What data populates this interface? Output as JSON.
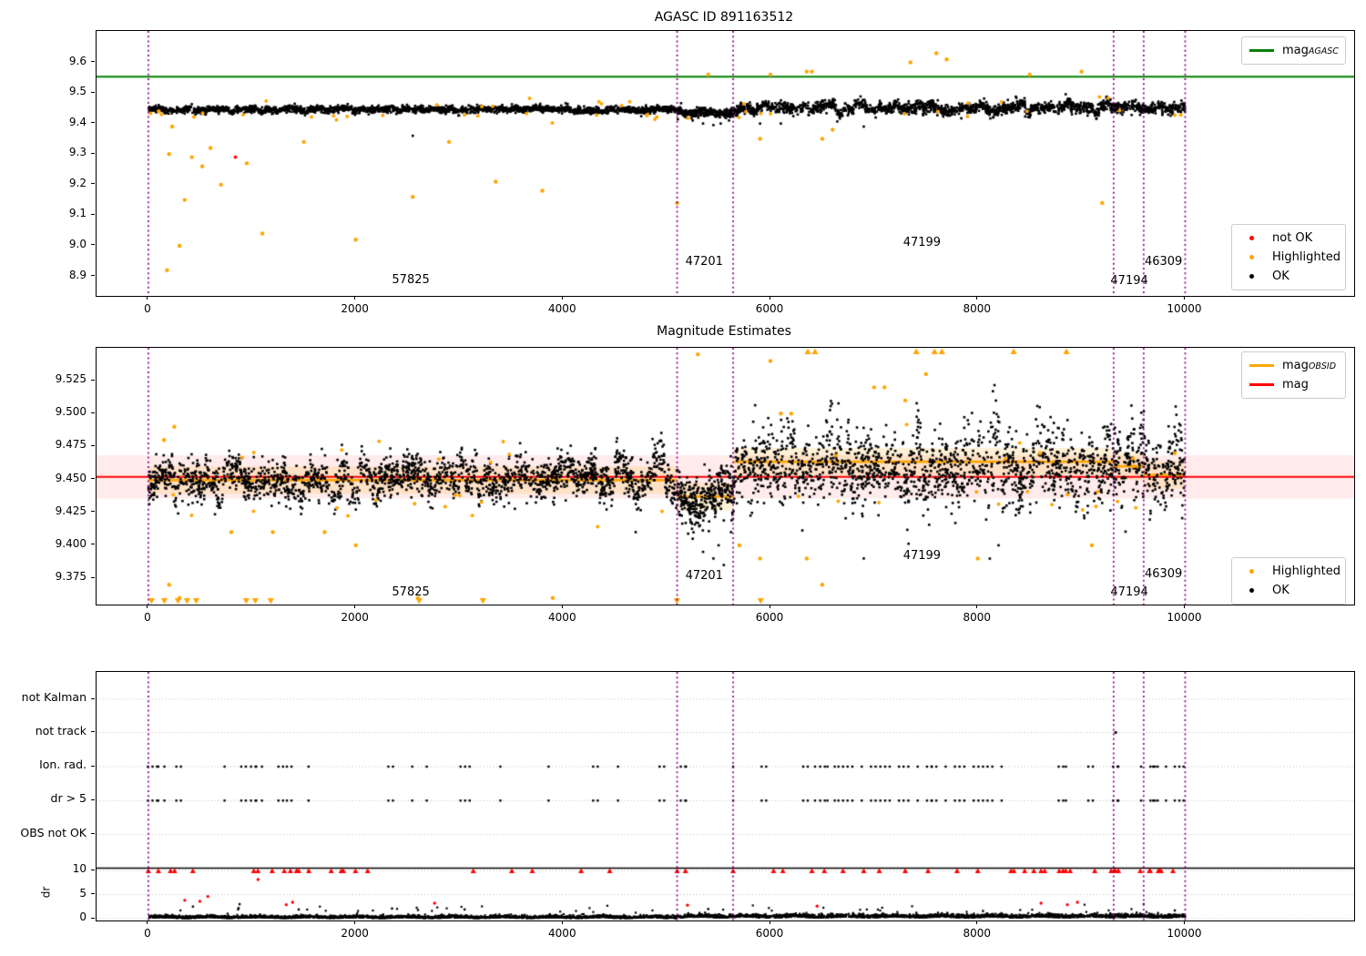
{
  "colors": {
    "green": "#008000",
    "orange": "#ffa500",
    "red": "#ff0000",
    "black": "#000000",
    "purple": "#880088",
    "grid": "#b9b9b9",
    "band_pink": "rgba(255,0,0,0.08)",
    "band_cream": "rgba(255,165,0,0.16)",
    "legend_border": "#cccccc"
  },
  "chart_data": [
    {
      "type": "scatter",
      "title": "AGASC ID 891163512",
      "xlim": [
        -500,
        11630
      ],
      "ylim": [
        8.836,
        9.703
      ],
      "xticks": [
        0,
        2000,
        4000,
        6000,
        8000,
        10000
      ],
      "xtick_labels": [
        "0",
        "2000",
        "4000",
        "6000",
        "8000",
        "10000"
      ],
      "yticks": [
        9.6,
        9.5,
        9.4,
        9.3,
        9.2,
        9.1,
        9.0,
        8.9
      ],
      "ytick_labels": [
        "9.6",
        "9.5",
        "9.4",
        "9.3",
        "9.2",
        "9.1",
        "9.0",
        "8.9"
      ],
      "hlines": [
        {
          "y": 9.553,
          "color": "#008000"
        }
      ],
      "legend_line": [
        {
          "main": "mag",
          "sub": "AGASC",
          "color": "#008000"
        }
      ],
      "legend_markers": [
        {
          "label": "not OK",
          "color": "#ff0000"
        },
        {
          "label": "Highlighted",
          "color": "#ffa500"
        },
        {
          "label": "OK",
          "color": "#000000"
        }
      ],
      "vlines_x": [
        0,
        5100,
        5640,
        9310,
        9600,
        10000
      ],
      "annotations": [
        {
          "label": "57825",
          "x": 2540,
          "y": 8.883
        },
        {
          "label": "47201",
          "x": 5370,
          "y": 8.944
        },
        {
          "label": "47199",
          "x": 7470,
          "y": 9.005
        },
        {
          "label": "47194",
          "x": 9470,
          "y": 8.881
        },
        {
          "label": "46309",
          "x": 9800,
          "y": 8.944
        }
      ],
      "ok_segments": [
        {
          "x0": 0,
          "x1": 5100,
          "mean": 9.4455,
          "sd": 0.0052,
          "n": 2100,
          "streak": [
            70,
            0.003
          ]
        },
        {
          "x0": 5100,
          "x1": 5650,
          "mean": 9.4335,
          "sd": 0.007,
          "n": 290,
          "streak": [
            60,
            0.003
          ]
        },
        {
          "x0": 5650,
          "x1": 10000,
          "mean": 9.4525,
          "sd": 0.009,
          "n": 1750,
          "streak": [
            55,
            0.006
          ]
        }
      ],
      "ok_extra": [
        [
          5250,
          9.41
        ],
        [
          5350,
          9.4
        ],
        [
          5450,
          9.395
        ],
        [
          5520,
          9.4
        ],
        [
          5600,
          9.41
        ],
        [
          5900,
          9.4
        ],
        [
          6100,
          9.4
        ],
        [
          6900,
          9.39
        ],
        [
          2550,
          9.36
        ]
      ],
      "highlighted_near_band": 45,
      "highlighted_outliers": [
        [
          100,
          9.44
        ],
        [
          180,
          8.92
        ],
        [
          200,
          9.3
        ],
        [
          230,
          9.39
        ],
        [
          300,
          9.0
        ],
        [
          350,
          9.15
        ],
        [
          420,
          9.29
        ],
        [
          520,
          9.26
        ],
        [
          600,
          9.32
        ],
        [
          700,
          9.2
        ],
        [
          950,
          9.27
        ],
        [
          1100,
          9.04
        ],
        [
          1500,
          9.34
        ],
        [
          2000,
          9.02
        ],
        [
          2550,
          9.16
        ],
        [
          2900,
          9.34
        ],
        [
          3350,
          9.21
        ],
        [
          3800,
          9.18
        ],
        [
          5100,
          9.14
        ],
        [
          5400,
          9.56
        ],
        [
          5900,
          9.35
        ],
        [
          6000,
          9.56
        ],
        [
          6350,
          9.57
        ],
        [
          6400,
          9.57
        ],
        [
          6500,
          9.35
        ],
        [
          6600,
          9.38
        ],
        [
          7350,
          9.6
        ],
        [
          7600,
          9.63
        ],
        [
          7700,
          9.61
        ],
        [
          8500,
          9.56
        ],
        [
          9000,
          9.57
        ],
        [
          9200,
          9.14
        ]
      ],
      "not_ok": [
        [
          840,
          9.29
        ]
      ]
    },
    {
      "type": "scatter",
      "title": "Magnitude Estimates",
      "xlim": [
        -500,
        11630
      ],
      "ylim": [
        9.355,
        9.55
      ],
      "xticks": [
        0,
        2000,
        4000,
        6000,
        8000,
        10000
      ],
      "xtick_labels": [
        "0",
        "2000",
        "4000",
        "6000",
        "8000",
        "10000"
      ],
      "yticks": [
        9.525,
        9.5,
        9.475,
        9.45,
        9.425,
        9.4,
        9.375
      ],
      "ytick_labels": [
        "9.525",
        "9.500",
        "9.475",
        "9.450",
        "9.425",
        "9.400",
        "9.375"
      ],
      "bands": [
        {
          "y0": 9.4355,
          "y1": 9.4685,
          "color": "rgba(255,0,0,0.08)"
        }
      ],
      "step_bands": [
        {
          "x0": 0,
          "x1": 5100,
          "y": 9.4495,
          "half": 0.0105
        },
        {
          "x0": 5100,
          "x1": 5650,
          "y": 9.437,
          "half": 0.0105
        },
        {
          "x0": 5650,
          "x1": 9310,
          "y": 9.4635,
          "half": 0.0105
        },
        {
          "x0": 9310,
          "x1": 9600,
          "y": 9.46,
          "half": 0.0105
        },
        {
          "x0": 9600,
          "x1": 10000,
          "y": 9.4535,
          "half": 0.0105
        }
      ],
      "hlines": [
        {
          "y": 9.452,
          "color": "#ff0000"
        }
      ],
      "step_line": {
        "color": "#ffa500",
        "segments": [
          {
            "x0": 0,
            "x1": 5100,
            "y": 9.4495
          },
          {
            "x0": 5100,
            "x1": 5650,
            "y": 9.437
          },
          {
            "x0": 5650,
            "x1": 9310,
            "y": 9.4635
          },
          {
            "x0": 9310,
            "x1": 9600,
            "y": 9.46
          },
          {
            "x0": 9600,
            "x1": 10000,
            "y": 9.4535
          }
        ]
      },
      "legend_line": [
        {
          "main": "mag",
          "sub": "OBSID",
          "color": "#ffa500"
        },
        {
          "main": "mag",
          "sub": "",
          "color": "#ff0000"
        }
      ],
      "legend_markers": [
        {
          "label": "Highlighted",
          "color": "#ffa500"
        },
        {
          "label": "OK",
          "color": "#000000"
        }
      ],
      "vlines_x": [
        0,
        5100,
        5640,
        9310,
        9600,
        10000
      ],
      "annotations": [
        {
          "label": "57825",
          "x": 2540,
          "y": 9.363
        },
        {
          "label": "47201",
          "x": 5370,
          "y": 9.376
        },
        {
          "label": "47199",
          "x": 7470,
          "y": 9.391
        },
        {
          "label": "47194",
          "x": 9470,
          "y": 9.363
        },
        {
          "label": "46309",
          "x": 9800,
          "y": 9.377
        }
      ],
      "ok_segments": [
        {
          "x0": 0,
          "x1": 5100,
          "mean": 9.4495,
          "sd": 0.0075,
          "n": 2000,
          "streak": [
            60,
            0.007
          ]
        },
        {
          "x0": 5100,
          "x1": 5650,
          "mean": 9.4365,
          "sd": 0.0095,
          "n": 330,
          "streak": [
            55,
            0.006
          ]
        },
        {
          "x0": 5650,
          "x1": 10000,
          "mean": 9.455,
          "sd": 0.0085,
          "n": 650,
          "streak": [
            45,
            0.004
          ]
        },
        {
          "x0": 5650,
          "x1": 10000,
          "mean": 9.462,
          "sd": 0.014,
          "n": 1150,
          "streak": [
            45,
            0.013
          ]
        }
      ],
      "ok_extra": [
        [
          5250,
          9.405
        ],
        [
          5350,
          9.395
        ],
        [
          5450,
          9.39
        ],
        [
          5500,
          9.4
        ],
        [
          5550,
          9.385
        ],
        [
          5620,
          9.41
        ],
        [
          4700,
          9.41
        ],
        [
          6900,
          9.39
        ],
        [
          8200,
          9.4
        ]
      ],
      "highlighted_near_band": 40,
      "highlighted_outliers": [
        [
          150,
          9.48
        ],
        [
          200,
          9.37
        ],
        [
          250,
          9.49
        ],
        [
          300,
          9.36
        ],
        [
          800,
          9.41
        ],
        [
          1200,
          9.41
        ],
        [
          1700,
          9.41
        ],
        [
          2000,
          9.4
        ],
        [
          2600,
          9.36
        ],
        [
          3900,
          9.36
        ],
        [
          5300,
          9.545
        ],
        [
          5700,
          9.4
        ],
        [
          5900,
          9.39
        ],
        [
          6000,
          9.54
        ],
        [
          6100,
          9.5
        ],
        [
          6200,
          9.5
        ],
        [
          6350,
          9.39
        ],
        [
          6500,
          9.37
        ],
        [
          7000,
          9.52
        ],
        [
          7100,
          9.52
        ],
        [
          7300,
          9.51
        ],
        [
          7500,
          9.53
        ],
        [
          8000,
          9.39
        ],
        [
          8600,
          9.47
        ],
        [
          9100,
          9.4
        ],
        [
          9500,
          9.46
        ],
        [
          9900,
          9.47
        ]
      ],
      "clip_up_x": [
        6360,
        6430,
        7407,
        7583,
        7653,
        8346,
        8855
      ],
      "clip_down_x": [
        31,
        154,
        285,
        373,
        461,
        944,
        1032,
        1181,
        2612,
        3227,
        5098,
        5906
      ],
      "not_ok": []
    },
    {
      "type": "scatter",
      "title": "",
      "xlim": [
        -500,
        11630
      ],
      "xticks": [
        0,
        2000,
        4000,
        6000,
        8000,
        10000
      ],
      "xtick_labels": [
        "0",
        "2000",
        "4000",
        "6000",
        "8000",
        "10000"
      ],
      "categories": [
        "not Kalman",
        "not track",
        "Ion. rad.",
        "dr > 5",
        "OBS not OK"
      ],
      "dr_ticks": [
        10,
        5,
        0
      ],
      "dr_tick_labels": [
        "10",
        "5",
        "0"
      ],
      "ylabel": "dr",
      "dr_threshold_line": 10,
      "flags_x": [
        40,
        95,
        155,
        270,
        735,
        940,
        990,
        1040,
        1095,
        1255,
        1380,
        1545,
        2315,
        2545,
        2685,
        3055,
        3395,
        3860,
        4290,
        4530,
        4975,
        5135,
        5185,
        5640,
        5915,
        6360,
        6430,
        6480,
        6550,
        6620,
        6700,
        6790,
        6880,
        6970,
        7060,
        7150,
        7240,
        7330,
        7420,
        7510,
        7600,
        7690,
        7780,
        7870,
        7960,
        8050,
        8140,
        8230,
        8780,
        8850,
        9110,
        9305,
        9355,
        9575,
        9665,
        9735,
        9815,
        9900,
        9985
      ],
      "not_track_x": [
        9330
      ],
      "red_clip_x": [
        0,
        97,
        214,
        253,
        429,
        1017,
        1056,
        1194,
        1311,
        1370,
        1429,
        1449,
        1547,
        1763,
        1861,
        1881,
        1998,
        2115,
        3134,
        3506,
        3703,
        4174,
        4450,
        5100,
        5180,
        5640,
        6030,
        6120,
        6400,
        6520,
        6700,
        6900,
        7050,
        7300,
        7520,
        7800,
        8000,
        8320,
        8347,
        8452,
        8540,
        8610,
        8645,
        8786,
        8821,
        8847,
        8891,
        9128,
        9286,
        9312,
        9330,
        9356,
        9567,
        9655,
        9663,
        9742,
        9751,
        9768,
        9882
      ],
      "red_points": [
        [
          351,
          3.8
        ],
        [
          497,
          3.6
        ],
        [
          574,
          4.6
        ],
        [
          1058,
          8.1
        ],
        [
          1330,
          2.9
        ],
        [
          1391,
          3.4
        ],
        [
          2761,
          3.2
        ],
        [
          5200,
          2.8
        ],
        [
          6450,
          2.6
        ],
        [
          8610,
          3.2
        ],
        [
          8864,
          2.9
        ],
        [
          8961,
          3.4
        ]
      ],
      "black_extra": [
        [
          430,
          2.5
        ],
        [
          870,
          2.2
        ],
        [
          880,
          3.0
        ],
        [
          1450,
          1.9
        ],
        [
          2350,
          2.1
        ],
        [
          2600,
          1.8
        ],
        [
          3050,
          1.9
        ],
        [
          5400,
          2.0
        ],
        [
          8050,
          1.6
        ],
        [
          9900,
          1.7
        ]
      ],
      "trace": {
        "n": 4300,
        "split_x": 5100,
        "base_left": 0.28,
        "base_right": 0.5,
        "noise": 0.3
      },
      "vlines_x": [
        0,
        5100,
        5640,
        9310,
        9600,
        10000
      ]
    }
  ]
}
